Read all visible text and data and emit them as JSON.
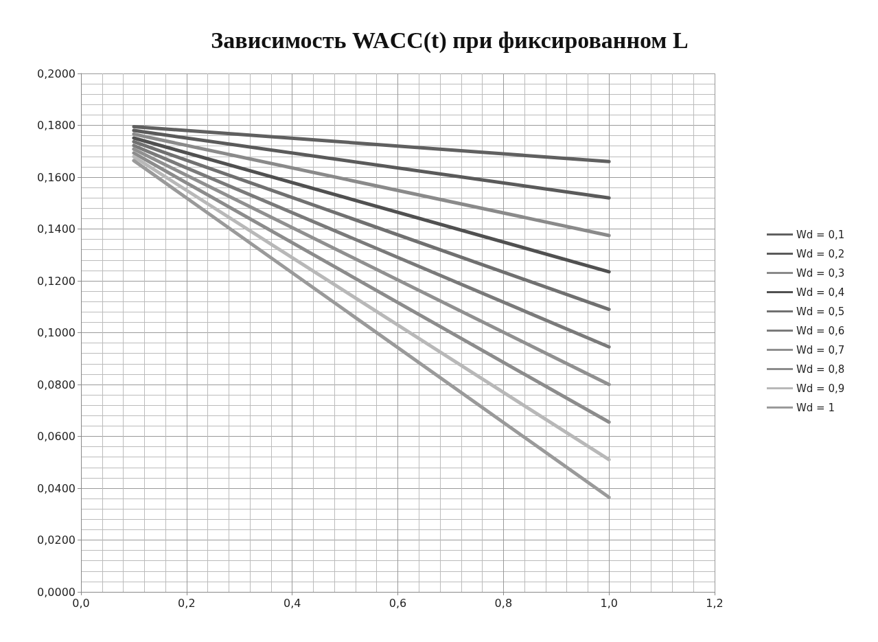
{
  "chart_data": {
    "type": "line",
    "title": "Зависимость WACC(t) при фиксированном L",
    "x": [
      0.1,
      1.0
    ],
    "series": [
      {
        "name": "Wd = 0,1",
        "color": "#606060",
        "values": [
          0.1795,
          0.166
        ]
      },
      {
        "name": "Wd = 0,2",
        "color": "#5a5a5a",
        "values": [
          0.178,
          0.152
        ]
      },
      {
        "name": "Wd = 0,3",
        "color": "#8a8a8a",
        "values": [
          0.1766,
          0.1375
        ]
      },
      {
        "name": "Wd = 0,4",
        "color": "#505050",
        "values": [
          0.1751,
          0.1235
        ]
      },
      {
        "name": "Wd = 0,5",
        "color": "#707070",
        "values": [
          0.1737,
          0.109
        ]
      },
      {
        "name": "Wd = 0,6",
        "color": "#7a7a7a",
        "values": [
          0.1722,
          0.0945
        ]
      },
      {
        "name": "Wd = 0,7",
        "color": "#909090",
        "values": [
          0.1708,
          0.08
        ]
      },
      {
        "name": "Wd = 0,8",
        "color": "#8c8c8c",
        "values": [
          0.1693,
          0.0655
        ]
      },
      {
        "name": "Wd = 0,9",
        "color": "#b8b8b8",
        "values": [
          0.1679,
          0.051
        ]
      },
      {
        "name": "Wd = 1",
        "color": "#9a9a9a",
        "values": [
          0.1664,
          0.0365
        ]
      }
    ],
    "xlim": [
      0,
      1.2
    ],
    "xticks": [
      {
        "value": 0,
        "label": "0,0"
      },
      {
        "value": 0.2,
        "label": "0,2"
      },
      {
        "value": 0.4,
        "label": "0,4"
      },
      {
        "value": 0.6,
        "label": "0,6"
      },
      {
        "value": 0.8,
        "label": "0,8"
      },
      {
        "value": 1.0,
        "label": "1,0"
      },
      {
        "value": 1.2,
        "label": "1,2"
      }
    ],
    "ylim": [
      0,
      0.2
    ],
    "yticks": [
      {
        "value": 0,
        "label": "0,0000"
      },
      {
        "value": 0.02,
        "label": "0,0200"
      },
      {
        "value": 0.04,
        "label": "0,0400"
      },
      {
        "value": 0.06,
        "label": "0,0600"
      },
      {
        "value": 0.08,
        "label": "0,0800"
      },
      {
        "value": 0.1,
        "label": "0,1000"
      },
      {
        "value": 0.12,
        "label": "0,1200"
      },
      {
        "value": 0.14,
        "label": "0,1400"
      },
      {
        "value": 0.16,
        "label": "0,1600"
      },
      {
        "value": 0.18,
        "label": "0,1800"
      },
      {
        "value": 0.2,
        "label": "0,2000"
      }
    ],
    "grid": true,
    "legend": "right",
    "marker": "none",
    "line_style": "solid"
  }
}
